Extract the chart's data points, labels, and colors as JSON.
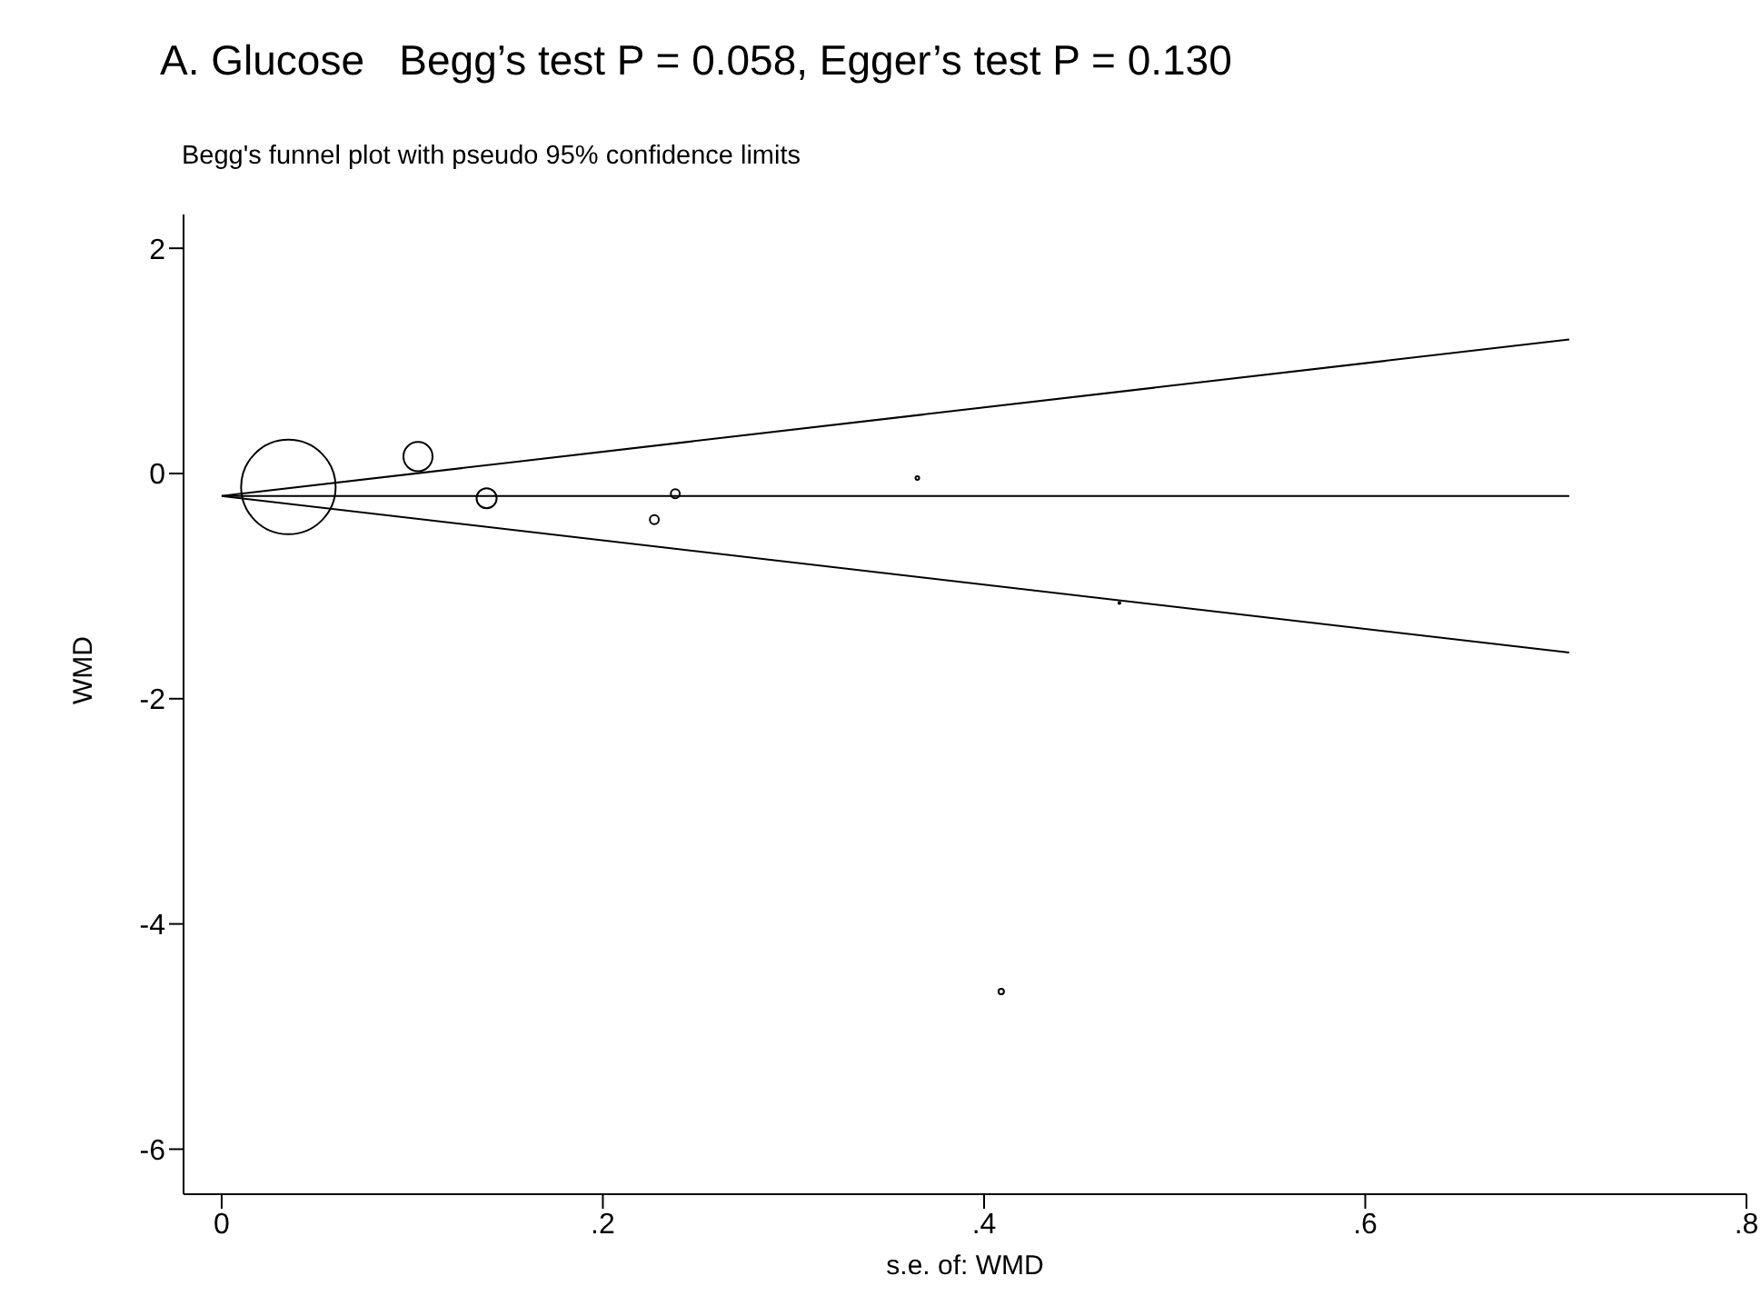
{
  "chart_data": {
    "type": "bubble",
    "title": "A. Glucose   Begg’s test P = 0.058, Egger’s test P = 0.130",
    "subtitle": "Begg's funnel plot with pseudo 95% confidence limits",
    "xlabel": "s.e. of: WMD",
    "ylabel": "WMD",
    "xlim": [
      -0.02,
      0.8
    ],
    "xticks": [
      0,
      {
        "value": 0.2,
        "label": ".2"
      },
      {
        "value": 0.4,
        "label": ".4"
      },
      {
        "value": 0.6,
        "label": ".6"
      },
      {
        "value": 0.8,
        "label": ".8"
      }
    ],
    "ylim": [
      -6.4,
      2.3
    ],
    "yticks": [
      -6,
      -4,
      -2,
      0,
      2
    ],
    "grid": false,
    "legend": false,
    "marker": "circle",
    "line_style": "solid",
    "series": [
      {
        "color": "#000000",
        "x": [
          0.035,
          0.103,
          0.139,
          0.238,
          0.227,
          0.365,
          0.471,
          0.409
        ],
        "values": [
          -0.12,
          0.15,
          -0.22,
          -0.18,
          -0.41,
          -0.04,
          -1.15,
          -4.6
        ],
        "sizes": [
          1,
          0.095,
          0.045,
          0.009,
          0.009,
          0.0015,
          0.0004,
          0.0033
        ]
      },
      {
        "type": "line",
        "color": "#000000",
        "x": [
          0,
          0.707
        ],
        "values": [
          -0.2,
          1.19
        ],
        "marker": "none"
      },
      {
        "type": "line",
        "color": "#000000",
        "x": [
          0,
          0.707
        ],
        "values": [
          -0.2,
          -0.2
        ],
        "marker": "none"
      },
      {
        "type": "line",
        "color": "#000000",
        "x": [
          0,
          0.707
        ],
        "values": [
          -0.2,
          -1.59
        ],
        "marker": "none"
      }
    ]
  }
}
